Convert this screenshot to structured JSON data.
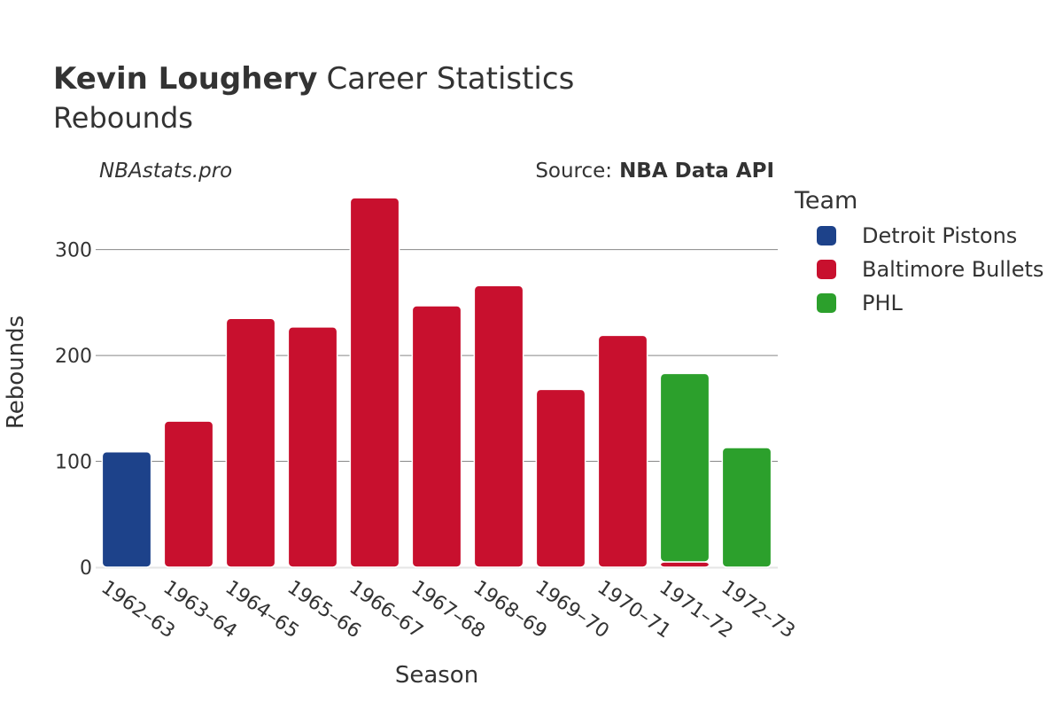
{
  "header": {
    "title_bold": "Kevin Loughery",
    "title_rest": "Career Statistics",
    "subtitle": "Rebounds",
    "site": "NBAstats.pro",
    "source_label": "Source:",
    "source_value": "NBA Data API"
  },
  "legend": {
    "title": "Team"
  },
  "chart_data": {
    "type": "bar",
    "stacked": true,
    "xlabel": "Season",
    "ylabel": "Rebounds",
    "ylim": [
      0,
      360
    ],
    "yticks": [
      0,
      100,
      200,
      300
    ],
    "grid": true,
    "legend_position": "right",
    "categories": [
      "1962–63",
      "1963–64",
      "1964–65",
      "1965–66",
      "1966–67",
      "1967–68",
      "1968–69",
      "1969–70",
      "1970–71",
      "1971–72",
      "1972–73"
    ],
    "series": [
      {
        "name": "Detroit Pistons",
        "color": "#1d428a",
        "values": [
          109,
          0,
          0,
          0,
          0,
          0,
          0,
          0,
          0,
          0,
          0
        ]
      },
      {
        "name": "Baltimore Bullets",
        "color": "#c8102e",
        "values": [
          0,
          138,
          235,
          227,
          349,
          247,
          266,
          168,
          219,
          5,
          0
        ]
      },
      {
        "name": "PHL",
        "color": "#2ca02c",
        "values": [
          0,
          0,
          0,
          0,
          0,
          0,
          0,
          0,
          0,
          178,
          113
        ]
      }
    ]
  }
}
